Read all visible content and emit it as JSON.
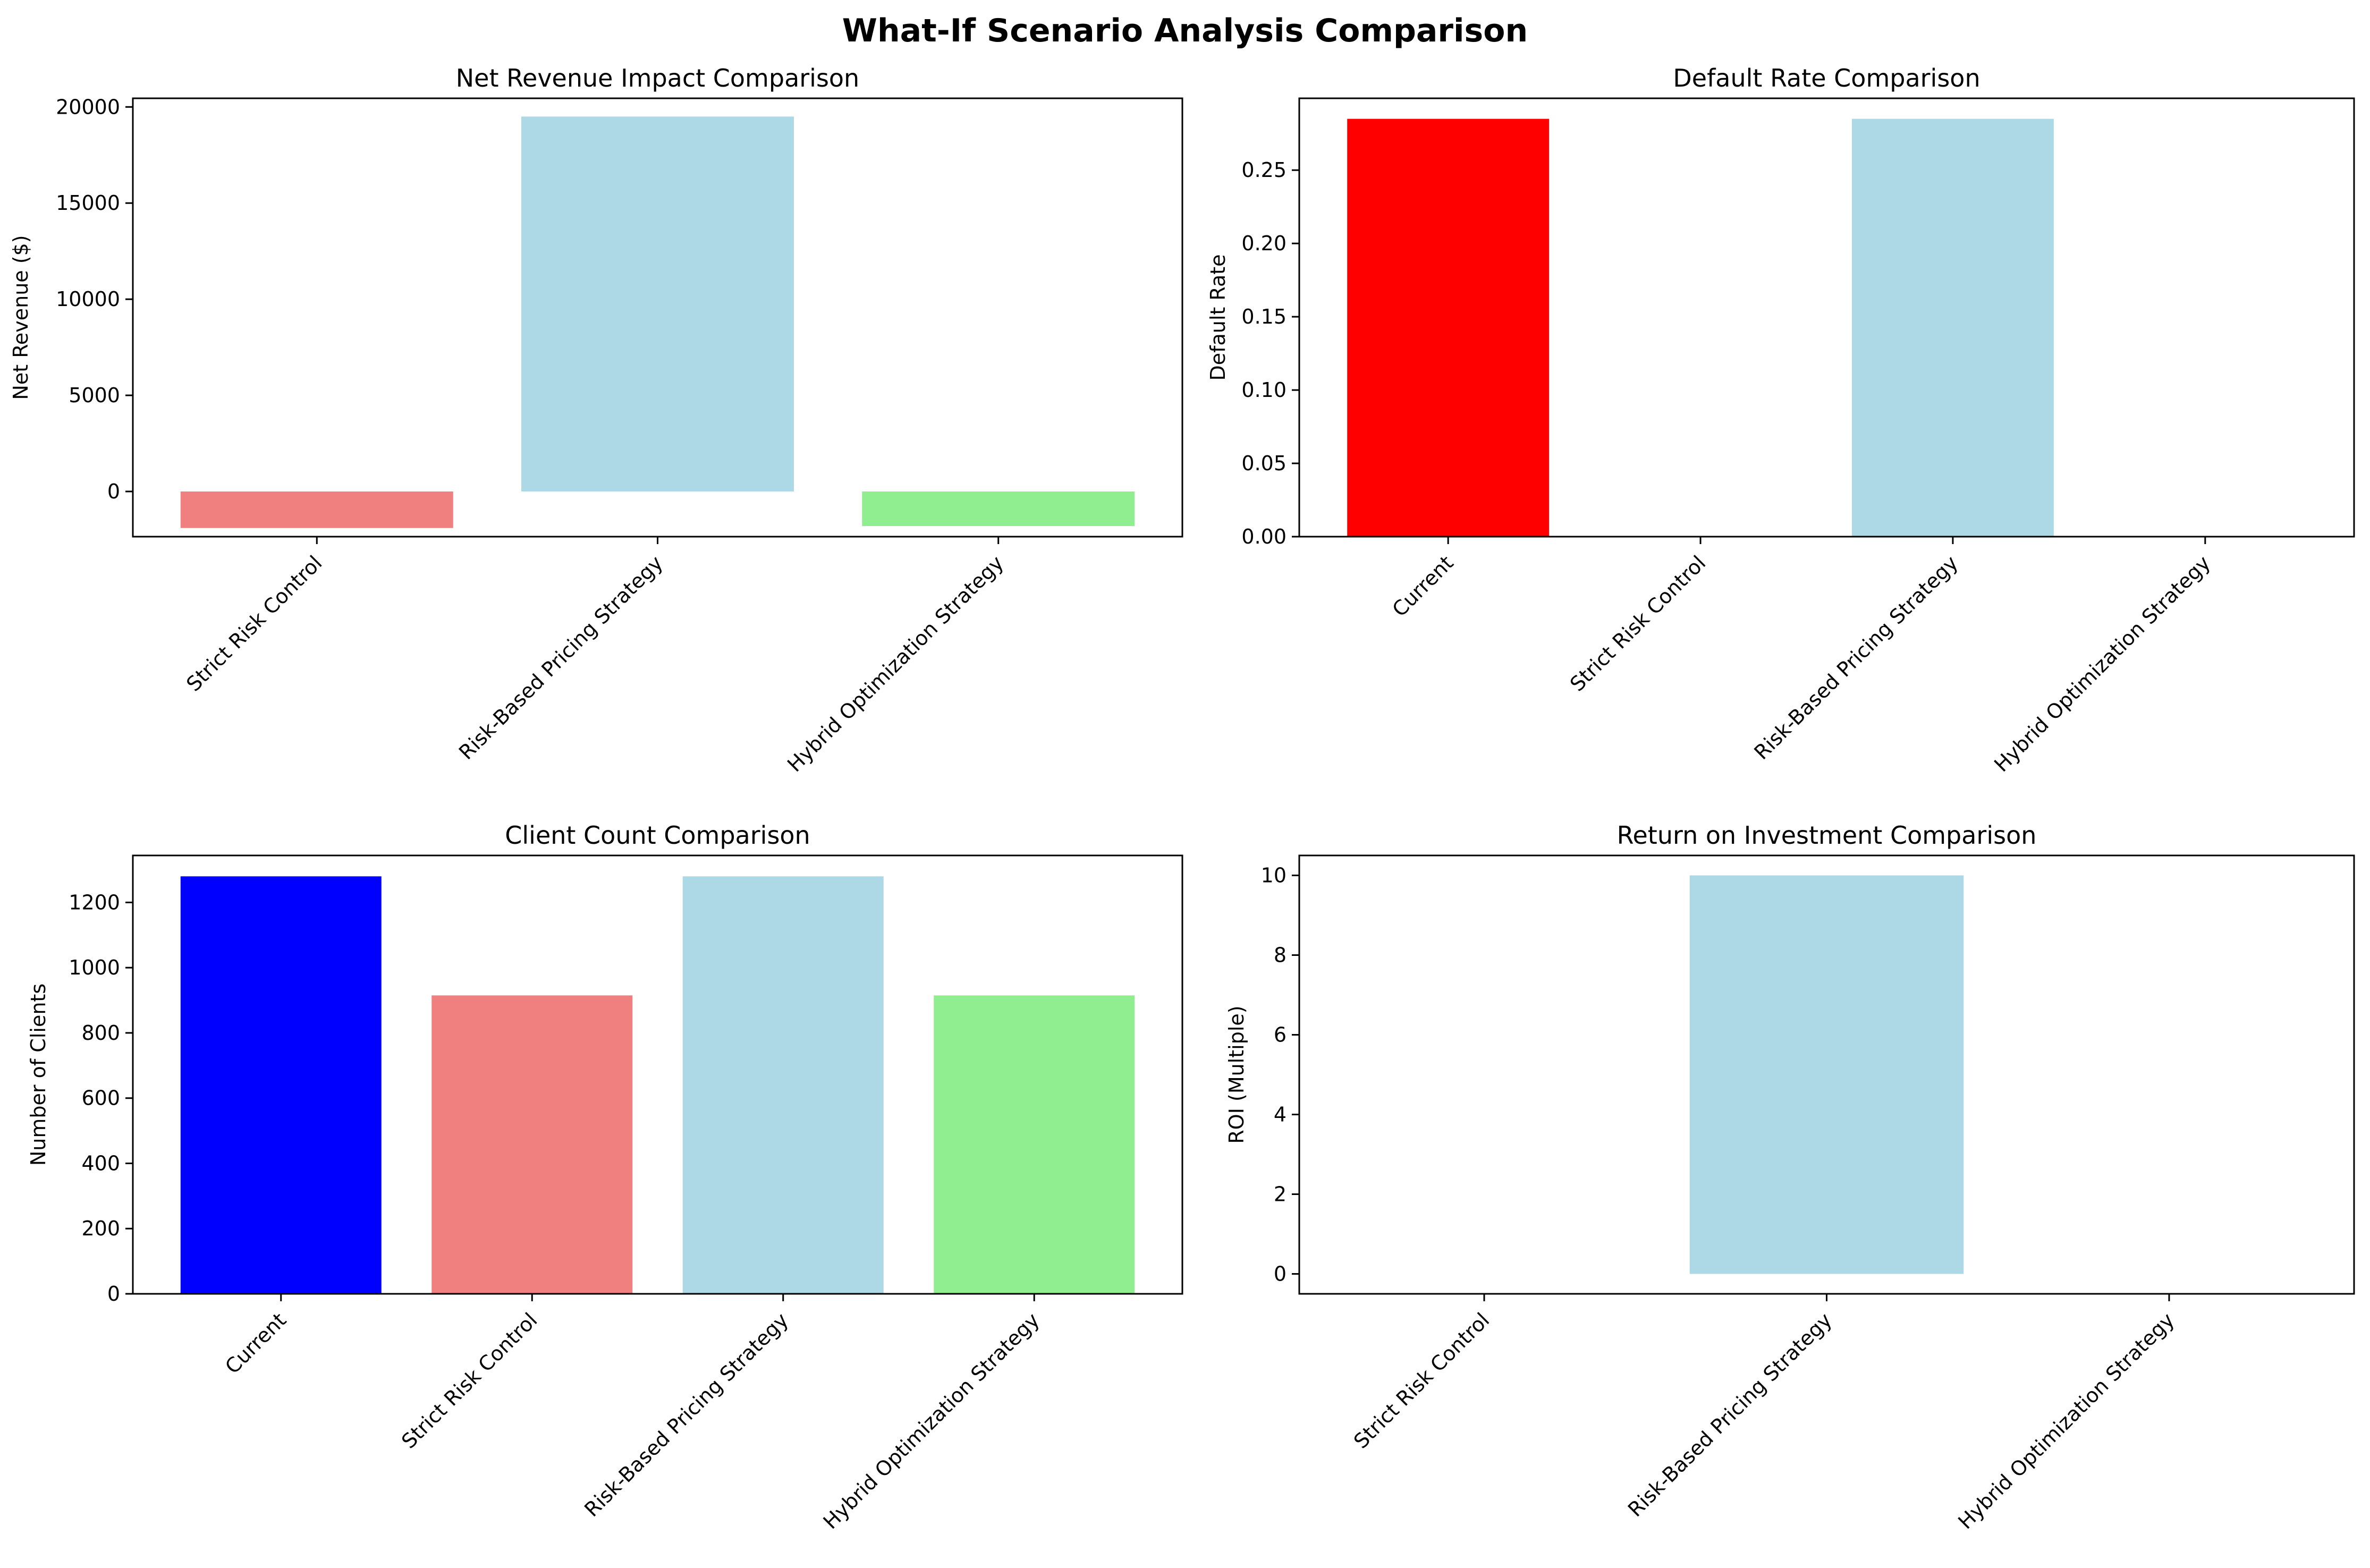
{
  "title": "What-If Scenario Analysis Comparison",
  "chart_data": [
    {
      "type": "bar",
      "title": "Net Revenue Impact Comparison",
      "xlabel": "",
      "ylabel": "Net Revenue ($)",
      "categories": [
        "Strict Risk Control",
        "Risk-Based Pricing Strategy",
        "Hybrid Optimization Strategy"
      ],
      "values": [
        -1900,
        19500,
        -1800
      ],
      "colors": [
        "#f08080",
        "#add8e6",
        "#90ee90"
      ],
      "ylim": [
        -2350,
        20450
      ],
      "yticks": [
        0,
        5000,
        10000,
        15000,
        20000
      ],
      "ytick_labels": [
        "0",
        "5000",
        "10000",
        "15000",
        "20000"
      ],
      "grid": false
    },
    {
      "type": "bar",
      "title": "Default Rate Comparison",
      "xlabel": "",
      "ylabel": "Default Rate",
      "categories": [
        "Current",
        "Strict Risk Control",
        "Risk-Based Pricing Strategy",
        "Hybrid Optimization Strategy"
      ],
      "values": [
        0.285,
        0.0,
        0.285,
        0.0
      ],
      "colors": [
        "#ff0000",
        "#f08080",
        "#add8e6",
        "#90ee90"
      ],
      "ylim": [
        0,
        0.299
      ],
      "yticks": [
        0,
        0.05,
        0.1,
        0.15,
        0.2,
        0.25
      ],
      "ytick_labels": [
        "0.00",
        "0.05",
        "0.10",
        "0.15",
        "0.20",
        "0.25"
      ],
      "grid": false
    },
    {
      "type": "bar",
      "title": "Client Count Comparison",
      "xlabel": "",
      "ylabel": "Number of Clients",
      "categories": [
        "Current",
        "Strict Risk Control",
        "Risk-Based Pricing Strategy",
        "Hybrid Optimization Strategy"
      ],
      "values": [
        1280,
        915,
        1280,
        915
      ],
      "colors": [
        "#0000ff",
        "#f08080",
        "#add8e6",
        "#90ee90"
      ],
      "ylim": [
        0,
        1344
      ],
      "yticks": [
        0,
        200,
        400,
        600,
        800,
        1000,
        1200
      ],
      "ytick_labels": [
        "0",
        "200",
        "400",
        "600",
        "800",
        "1000",
        "1200"
      ],
      "grid": false
    },
    {
      "type": "bar",
      "title": "Return on Investment Comparison",
      "xlabel": "",
      "ylabel": "ROI (Multiple)",
      "categories": [
        "Strict Risk Control",
        "Risk-Based Pricing Strategy",
        "Hybrid Optimization Strategy"
      ],
      "values": [
        0,
        10,
        0
      ],
      "colors": [
        "#f08080",
        "#add8e6",
        "#90ee90"
      ],
      "ylim": [
        -0.5,
        10.5
      ],
      "yticks": [
        0,
        2,
        4,
        6,
        8,
        10
      ],
      "ytick_labels": [
        "0",
        "2",
        "4",
        "6",
        "8",
        "10"
      ],
      "grid": false
    }
  ]
}
